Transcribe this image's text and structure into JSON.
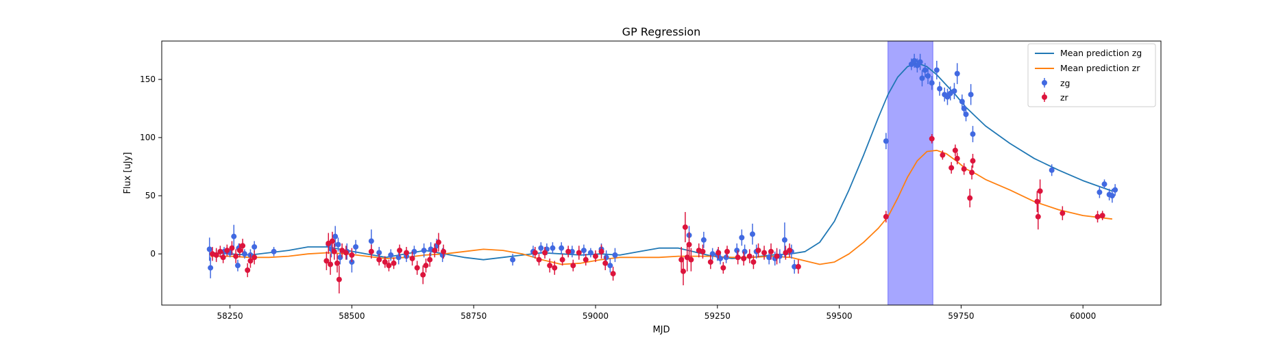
{
  "chart_data": {
    "type": "scatter",
    "title": "GP Regression",
    "xlabel": "MJD",
    "ylabel": "Flux [uJy]",
    "xlim": [
      58110,
      60160
    ],
    "ylim": [
      -44,
      183
    ],
    "xticks": [
      58250,
      58500,
      58750,
      59000,
      59250,
      59500,
      59750,
      60000
    ],
    "yticks": [
      0,
      50,
      100,
      150
    ],
    "grid": false,
    "legend_position": "top-right",
    "shaded_region": {
      "x0": 59600,
      "x1": 59692,
      "color": "#a6a6ff"
    },
    "series": [
      {
        "name": "Mean prediction zg",
        "kind": "line",
        "color": "#1f77b4",
        "x": [
          58210,
          58250,
          58290,
          58330,
          58370,
          58410,
          58450,
          58490,
          58530,
          58570,
          58610,
          58650,
          58690,
          58730,
          58770,
          58810,
          58850,
          58890,
          58930,
          58970,
          59010,
          59050,
          59090,
          59130,
          59170,
          59200,
          59240,
          59280,
          59320,
          59360,
          59400,
          59430,
          59460,
          59490,
          59520,
          59550,
          59580,
          59600,
          59620,
          59640,
          59660,
          59680,
          59700,
          59720,
          59740,
          59760,
          59780,
          59800,
          59850,
          59900,
          59950,
          60000,
          60060
        ],
        "y": [
          1,
          0,
          -1,
          1,
          3,
          6,
          6,
          3,
          0,
          -3,
          0,
          3,
          0,
          -3,
          -5,
          -3,
          -1,
          1,
          0,
          -1,
          0,
          -1,
          2,
          5,
          5,
          2,
          -2,
          -4,
          -3,
          -1,
          0,
          2,
          10,
          28,
          55,
          85,
          117,
          137,
          152,
          161,
          164,
          161,
          154,
          145,
          136,
          126,
          118,
          110,
          95,
          82,
          72,
          63,
          54
        ]
      },
      {
        "name": "Mean prediction zr",
        "kind": "line",
        "color": "#ff7f0e",
        "x": [
          58210,
          58250,
          58290,
          58330,
          58370,
          58410,
          58450,
          58490,
          58530,
          58570,
          58610,
          58650,
          58690,
          58730,
          58770,
          58810,
          58850,
          58890,
          58930,
          58970,
          59010,
          59050,
          59090,
          59130,
          59170,
          59200,
          59240,
          59280,
          59320,
          59360,
          59400,
          59430,
          59460,
          59490,
          59520,
          59550,
          59580,
          59600,
          59620,
          59640,
          59660,
          59680,
          59700,
          59720,
          59740,
          59760,
          59780,
          59800,
          59850,
          59900,
          59950,
          60000,
          60060
        ],
        "y": [
          -2,
          -2,
          -3,
          -3,
          -2,
          0,
          1,
          0,
          -2,
          -4,
          -3,
          -1,
          0,
          2,
          4,
          3,
          0,
          -5,
          -9,
          -8,
          -5,
          -3,
          -3,
          -3,
          -2,
          -2,
          -2,
          -3,
          -3,
          -2,
          -3,
          -6,
          -9,
          -7,
          0,
          10,
          22,
          32,
          48,
          66,
          80,
          88,
          89,
          86,
          80,
          73,
          69,
          64,
          55,
          45,
          38,
          33,
          30
        ]
      },
      {
        "name": "zg",
        "kind": "errorbar",
        "color": "#4169e1",
        "x": [
          58208,
          58210,
          58222,
          58238,
          58250,
          58258,
          58266,
          58268,
          58280,
          58292,
          58300,
          58340,
          58452,
          58458,
          58466,
          58472,
          58476,
          58490,
          58500,
          58508,
          58540,
          58556,
          58580,
          58596,
          58612,
          58628,
          58648,
          58662,
          58674,
          58686,
          58830,
          58872,
          58888,
          58900,
          58912,
          58930,
          58952,
          58976,
          58990,
          59012,
          59022,
          59030,
          59040,
          59192,
          59222,
          59240,
          59250,
          59256,
          59268,
          59290,
          59300,
          59306,
          59322,
          59330,
          59356,
          59368,
          59378,
          59388,
          59402,
          59408,
          59596,
          59648,
          59654,
          59660,
          59666,
          59670,
          59676,
          59682,
          59690,
          59700,
          59706,
          59716,
          59722,
          59728,
          59736,
          59742,
          59752,
          59756,
          59760,
          59770,
          59774,
          59936,
          60034,
          60044,
          60054,
          60060,
          60066
        ],
        "y": [
          4,
          -12,
          -1,
          2,
          1,
          15,
          -10,
          5,
          0,
          -1,
          6,
          2,
          8,
          4,
          15,
          8,
          -3,
          2,
          -7,
          6,
          11,
          1,
          -1,
          -3,
          -2,
          2,
          3,
          4,
          7,
          -1,
          -5,
          2,
          5,
          4,
          5,
          5,
          2,
          3,
          1,
          4,
          -3,
          -10,
          -1,
          16,
          12,
          0,
          -1,
          -4,
          -3,
          3,
          14,
          2,
          17,
          2,
          -3,
          -4,
          -2,
          12,
          2,
          -11,
          97,
          163,
          166,
          162,
          165,
          151,
          158,
          153,
          147,
          158,
          142,
          137,
          135,
          138,
          140,
          155,
          131,
          125,
          120,
          137,
          103,
          72,
          53,
          60,
          51,
          50,
          55
        ],
        "err": [
          10,
          9,
          5,
          4,
          4,
          10,
          5,
          4,
          4,
          5,
          5,
          4,
          8,
          7,
          9,
          6,
          6,
          7,
          9,
          6,
          10,
          5,
          5,
          6,
          5,
          5,
          6,
          6,
          6,
          6,
          5,
          5,
          5,
          5,
          5,
          5,
          5,
          5,
          4,
          5,
          6,
          6,
          6,
          8,
          7,
          5,
          5,
          5,
          5,
          6,
          7,
          6,
          9,
          6,
          6,
          6,
          6,
          15,
          6,
          6,
          7,
          5,
          6,
          6,
          7,
          7,
          6,
          7,
          6,
          8,
          6,
          6,
          7,
          6,
          7,
          9,
          6,
          6,
          6,
          9,
          7,
          5,
          5,
          4,
          5,
          6,
          5
        ]
      },
      {
        "name": "zr",
        "kind": "errorbar",
        "color": "#dc143c",
        "x": [
          58214,
          58222,
          58230,
          58236,
          58244,
          58254,
          58262,
          58270,
          58276,
          58286,
          58292,
          58300,
          58448,
          58452,
          58456,
          58460,
          58464,
          58470,
          58474,
          58480,
          58488,
          58500,
          58540,
          58556,
          58568,
          58576,
          58586,
          58598,
          58612,
          58624,
          58634,
          58646,
          58652,
          58660,
          58670,
          58678,
          58688,
          58876,
          58884,
          58896,
          58906,
          58916,
          58932,
          58944,
          58954,
          58966,
          58980,
          59000,
          59012,
          59020,
          59036,
          59176,
          59180,
          59184,
          59188,
          59192,
          59196,
          59212,
          59220,
          59236,
          59252,
          59262,
          59270,
          59292,
          59304,
          59316,
          59324,
          59334,
          59346,
          59360,
          59372,
          59390,
          59398,
          59416,
          59596,
          59690,
          59712,
          59730,
          59738,
          59742,
          59756,
          59768,
          59772,
          59774,
          59906,
          59908,
          59912,
          59958,
          60030,
          60040
        ],
        "y": [
          0,
          -1,
          2,
          -3,
          3,
          5,
          -2,
          3,
          7,
          -14,
          -6,
          -3,
          -6,
          9,
          -9,
          11,
          2,
          -8,
          -22,
          3,
          1,
          -1,
          2,
          -5,
          -7,
          -10,
          -8,
          3,
          1,
          -4,
          -12,
          -18,
          -10,
          -5,
          3,
          10,
          2,
          1,
          -5,
          1,
          -10,
          -12,
          -5,
          2,
          -10,
          1,
          -5,
          -2,
          2,
          -8,
          -17,
          -5,
          -15,
          23,
          -3,
          8,
          -5,
          3,
          2,
          -7,
          1,
          -12,
          2,
          -3,
          -4,
          -2,
          -7,
          3,
          1,
          2,
          -2,
          1,
          3,
          -11,
          32,
          99,
          85,
          74,
          89,
          82,
          73,
          48,
          70,
          80,
          45,
          32,
          54,
          35,
          32,
          33
        ],
        "err": [
          6,
          6,
          5,
          5,
          5,
          6,
          6,
          6,
          6,
          6,
          6,
          6,
          8,
          9,
          9,
          8,
          7,
          8,
          12,
          6,
          6,
          6,
          6,
          5,
          5,
          5,
          5,
          5,
          5,
          6,
          6,
          8,
          6,
          6,
          6,
          8,
          6,
          5,
          5,
          5,
          6,
          6,
          5,
          5,
          5,
          6,
          5,
          5,
          6,
          6,
          6,
          11,
          12,
          13,
          12,
          11,
          10,
          6,
          6,
          6,
          5,
          5,
          5,
          6,
          6,
          6,
          6,
          6,
          6,
          7,
          7,
          6,
          6,
          6,
          5,
          4,
          4,
          5,
          5,
          5,
          5,
          8,
          6,
          6,
          9,
          11,
          10,
          6,
          5,
          4
        ]
      }
    ]
  }
}
